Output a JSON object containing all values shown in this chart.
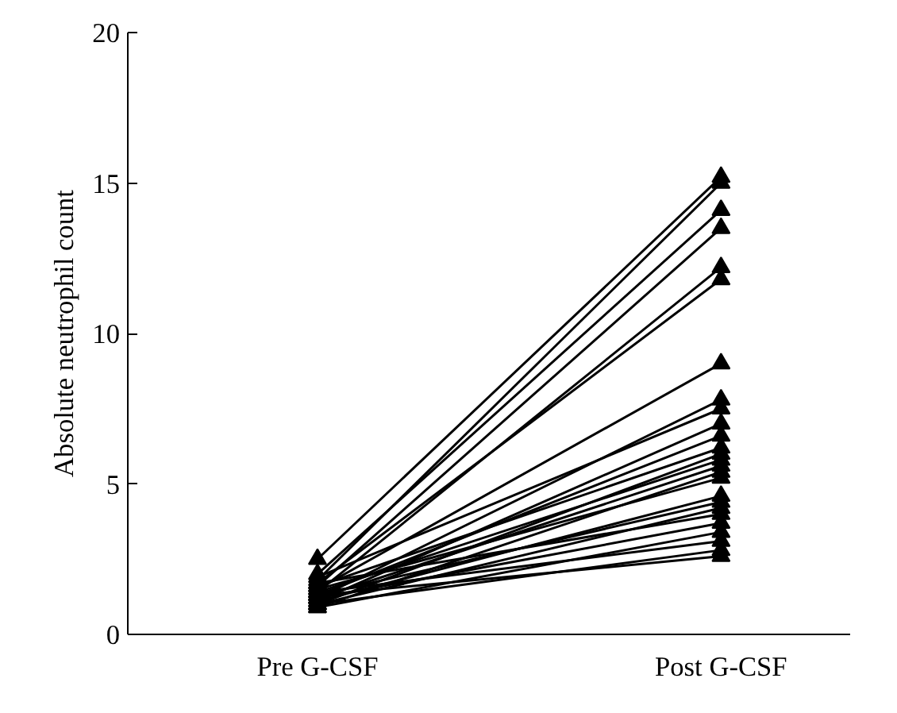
{
  "chart_data": {
    "type": "line",
    "ylabel": "Absolute neutrophil count",
    "categories": [
      "Pre G-CSF",
      "Post G-CSF"
    ],
    "ylim": [
      0,
      20
    ],
    "yticks": [
      0,
      5,
      10,
      15,
      20
    ],
    "grid": false,
    "marker": "triangle",
    "line_style": "solid",
    "series": [
      {
        "color": "#000000",
        "values": [
          2.5,
          15.2
        ]
      },
      {
        "color": "#000000",
        "values": [
          1.8,
          15.0
        ]
      },
      {
        "color": "#000000",
        "values": [
          2.0,
          14.1
        ]
      },
      {
        "color": "#000000",
        "values": [
          1.6,
          13.5
        ]
      },
      {
        "color": "#000000",
        "values": [
          1.4,
          12.2
        ]
      },
      {
        "color": "#000000",
        "values": [
          1.7,
          11.8
        ]
      },
      {
        "color": "#000000",
        "values": [
          1.5,
          9.0
        ]
      },
      {
        "color": "#000000",
        "values": [
          1.2,
          7.8
        ]
      },
      {
        "color": "#000000",
        "values": [
          1.9,
          7.5
        ]
      },
      {
        "color": "#000000",
        "values": [
          1.1,
          7.0
        ]
      },
      {
        "color": "#000000",
        "values": [
          1.3,
          6.6
        ]
      },
      {
        "color": "#000000",
        "values": [
          1.6,
          6.2
        ]
      },
      {
        "color": "#000000",
        "values": [
          1.0,
          6.0
        ]
      },
      {
        "color": "#000000",
        "values": [
          1.4,
          5.8
        ]
      },
      {
        "color": "#000000",
        "values": [
          1.2,
          5.6
        ]
      },
      {
        "color": "#000000",
        "values": [
          0.9,
          5.4
        ]
      },
      {
        "color": "#000000",
        "values": [
          1.5,
          5.2
        ]
      },
      {
        "color": "#000000",
        "values": [
          1.1,
          4.6
        ]
      },
      {
        "color": "#000000",
        "values": [
          1.3,
          4.4
        ]
      },
      {
        "color": "#000000",
        "values": [
          1.0,
          4.2
        ]
      },
      {
        "color": "#000000",
        "values": [
          1.7,
          4.0
        ]
      },
      {
        "color": "#000000",
        "values": [
          1.2,
          3.7
        ]
      },
      {
        "color": "#000000",
        "values": [
          0.9,
          3.4
        ]
      },
      {
        "color": "#000000",
        "values": [
          1.4,
          3.1
        ]
      },
      {
        "color": "#000000",
        "values": [
          1.0,
          2.8
        ]
      },
      {
        "color": "#000000",
        "values": [
          1.3,
          2.6
        ]
      }
    ]
  }
}
